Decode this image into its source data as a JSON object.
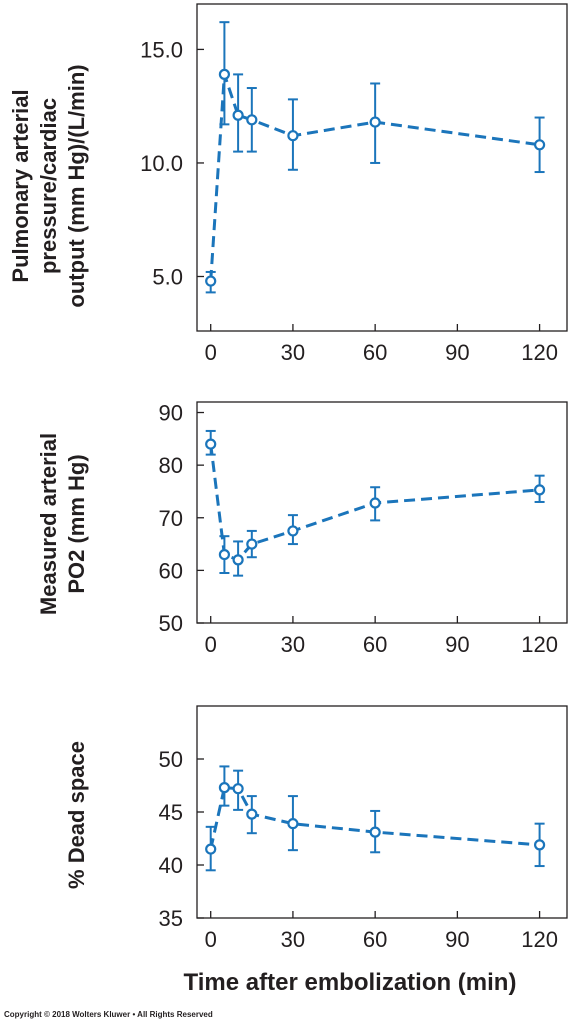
{
  "figure": {
    "xlabel": "Time after embolization (min)",
    "copyright": "Copyright © 2018 Wolters Kluwer • All Rights Reserved",
    "series_color": "#1b75bb",
    "axis_color": "#231f20"
  },
  "chart_data": [
    {
      "type": "line",
      "ylabel_lines": [
        "Pulmonary arterial",
        "pressure/cardiac",
        "output (mm Hg)/(L/min)"
      ],
      "x": [
        0,
        5,
        10,
        15,
        30,
        60,
        120
      ],
      "y": [
        4.8,
        13.9,
        12.1,
        11.9,
        11.2,
        11.8,
        10.8
      ],
      "err_low": [
        4.3,
        11.7,
        10.5,
        10.5,
        9.7,
        10.0,
        9.6
      ],
      "err_high": [
        5.2,
        16.2,
        13.9,
        13.3,
        12.8,
        13.5,
        12.0
      ],
      "xticks": [
        "0",
        "30",
        "60",
        "90",
        "120"
      ],
      "xtick_values": [
        0,
        30,
        60,
        90,
        120
      ],
      "yticks": [
        "5.0",
        "10.0",
        "15.0"
      ],
      "ytick_values": [
        5,
        10,
        15
      ],
      "xlim": [
        -5,
        130
      ],
      "ylim": [
        2.6,
        17.0
      ],
      "line_style": "dashed",
      "marker": "open circle",
      "grid": false
    },
    {
      "type": "line",
      "ylabel_lines": [
        "Measured arterial",
        "PO2 (mm Hg)"
      ],
      "x": [
        0,
        5,
        10,
        15,
        30,
        60,
        120
      ],
      "y": [
        84,
        63,
        62,
        65,
        67.5,
        72.8,
        75.3
      ],
      "err_low": [
        82,
        59.5,
        59,
        62.5,
        65,
        69.5,
        73
      ],
      "err_high": [
        86.5,
        66.5,
        65.5,
        67.5,
        70.5,
        75.8,
        78
      ],
      "xticks": [
        "0",
        "30",
        "60",
        "90",
        "120"
      ],
      "xtick_values": [
        0,
        30,
        60,
        90,
        120
      ],
      "yticks": [
        "50",
        "60",
        "70",
        "80",
        "90"
      ],
      "ytick_values": [
        50,
        60,
        70,
        80,
        90
      ],
      "xlim": [
        -5,
        130
      ],
      "ylim": [
        50,
        92
      ],
      "line_style": "dashed",
      "marker": "open circle",
      "grid": false
    },
    {
      "type": "line",
      "ylabel_lines": [
        "% Dead space"
      ],
      "x": [
        0,
        5,
        10,
        15,
        30,
        60,
        120
      ],
      "y": [
        41.5,
        47.3,
        47.2,
        44.8,
        43.9,
        43.1,
        41.9
      ],
      "err_low": [
        39.5,
        45.6,
        45.2,
        43.0,
        41.4,
        41.2,
        39.9
      ],
      "err_high": [
        43.6,
        49.3,
        48.9,
        46.5,
        46.5,
        45.1,
        43.9
      ],
      "xticks": [
        "0",
        "30",
        "60",
        "90",
        "120"
      ],
      "xtick_values": [
        0,
        30,
        60,
        90,
        120
      ],
      "yticks": [
        "35",
        "40",
        "45",
        "50"
      ],
      "ytick_values": [
        35,
        40,
        45,
        50
      ],
      "xlim": [
        -5,
        130
      ],
      "ylim": [
        35,
        55
      ],
      "line_style": "dashed",
      "marker": "open circle",
      "grid": false
    }
  ]
}
